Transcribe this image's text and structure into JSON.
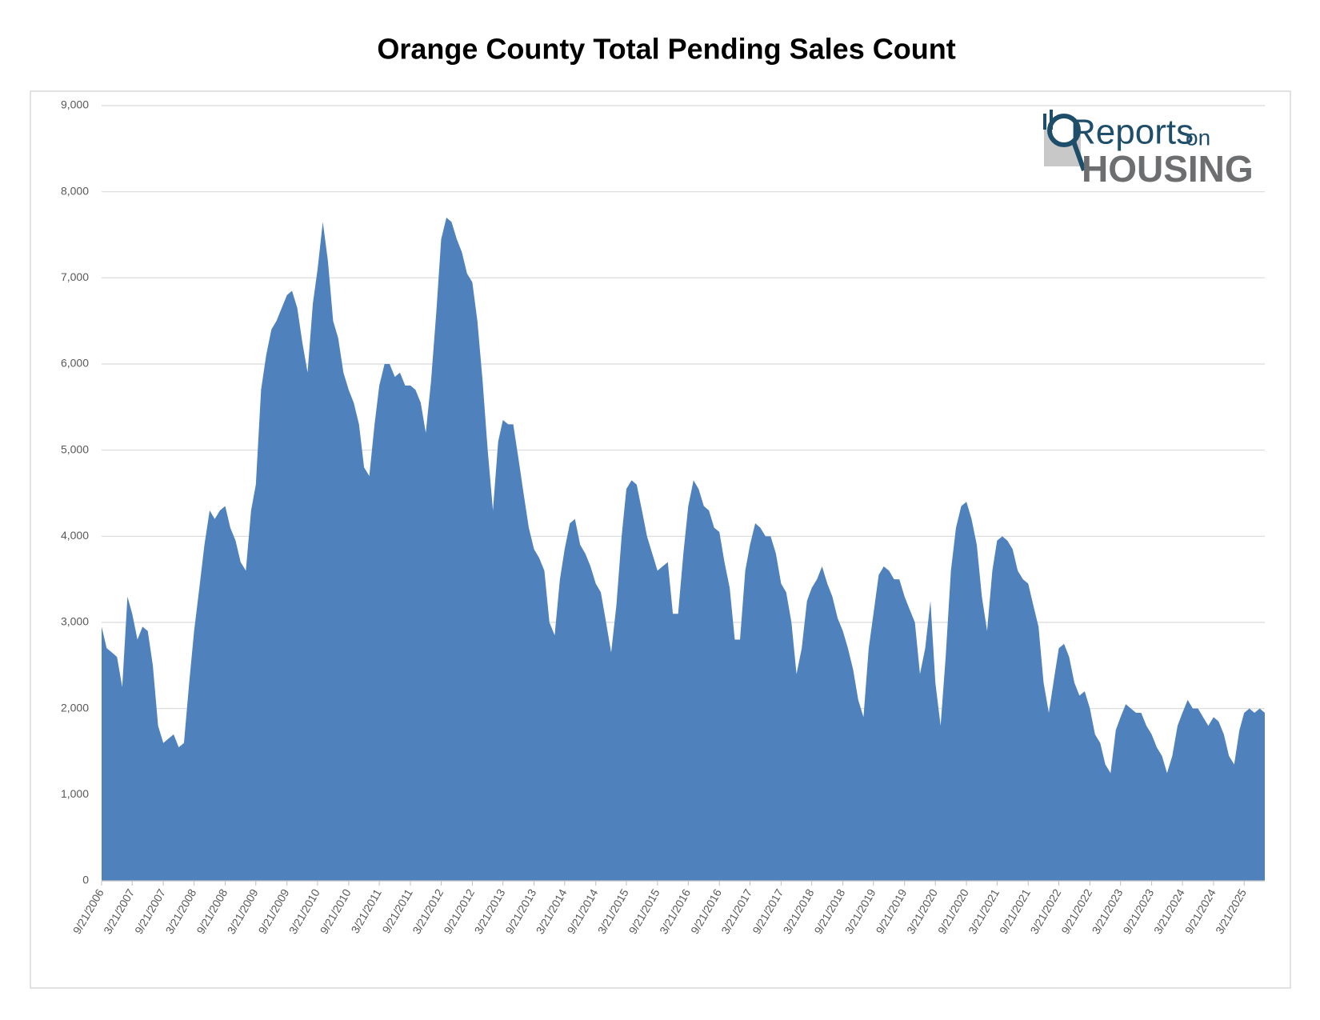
{
  "chart_data": {
    "type": "area",
    "title": "Orange County Total Pending Sales Count",
    "logo": {
      "word1": "Reports",
      "word2": "on",
      "word3": "HOUSING"
    },
    "color": "#4f81bd",
    "grid": true,
    "ylim": [
      0,
      9000
    ],
    "yticks": [
      0,
      {
        "value": 1000,
        "label": "1,000"
      },
      {
        "value": 2000,
        "label": "2,000"
      },
      {
        "value": 3000,
        "label": "3,000"
      },
      {
        "value": 4000,
        "label": "4,000"
      },
      {
        "value": 5000,
        "label": "5,000"
      },
      {
        "value": 6000,
        "label": "6,000"
      },
      {
        "value": 7000,
        "label": "7,000"
      },
      {
        "value": 8000,
        "label": "8,000"
      },
      {
        "value": 9000,
        "label": "9,000"
      }
    ],
    "xticks": [
      "9/21/2006",
      "3/21/2007",
      "9/21/2007",
      "3/21/2008",
      "9/21/2008",
      "3/21/2009",
      "9/21/2009",
      "3/21/2010",
      "9/21/2010",
      "3/21/2011",
      "9/21/2011",
      "3/21/2012",
      "9/21/2012",
      "3/21/2013",
      "9/21/2013",
      "3/21/2014",
      "9/21/2014",
      "3/21/2015",
      "9/21/2015",
      "3/21/2016",
      "9/21/2016",
      "3/21/2017",
      "9/21/2017",
      "3/21/2018",
      "9/21/2018",
      "3/21/2019",
      "9/21/2019",
      "3/21/2020",
      "9/21/2020",
      "3/21/2021",
      "9/21/2021",
      "3/21/2022",
      "9/21/2022",
      "3/21/2023",
      "9/21/2023",
      "3/21/2024",
      "9/21/2024",
      "3/21/2025"
    ],
    "x": [
      "9/21/2006",
      "10/21/2006",
      "11/21/2006",
      "12/21/2006",
      "1/21/2007",
      "2/21/2007",
      "3/21/2007",
      "4/21/2007",
      "5/21/2007",
      "6/21/2007",
      "7/21/2007",
      "8/21/2007",
      "9/21/2007",
      "10/21/2007",
      "11/21/2007",
      "12/21/2007",
      "1/21/2008",
      "2/21/2008",
      "3/21/2008",
      "4/21/2008",
      "5/21/2008",
      "6/21/2008",
      "7/21/2008",
      "8/21/2008",
      "9/21/2008",
      "10/21/2008",
      "11/21/2008",
      "12/21/2008",
      "1/21/2009",
      "2/21/2009",
      "3/21/2009",
      "4/21/2009",
      "5/21/2009",
      "6/21/2009",
      "7/21/2009",
      "8/21/2009",
      "9/21/2009",
      "10/21/2009",
      "11/21/2009",
      "12/21/2009",
      "1/21/2010",
      "2/21/2010",
      "3/21/2010",
      "4/21/2010",
      "5/21/2010",
      "6/21/2010",
      "7/21/2010",
      "8/21/2010",
      "9/21/2010",
      "10/21/2010",
      "11/21/2010",
      "12/21/2010",
      "1/21/2011",
      "2/21/2011",
      "3/21/2011",
      "4/21/2011",
      "5/21/2011",
      "6/21/2011",
      "7/21/2011",
      "8/21/2011",
      "9/21/2011",
      "10/21/2011",
      "11/21/2011",
      "12/21/2011",
      "1/21/2012",
      "2/21/2012",
      "3/21/2012",
      "4/21/2012",
      "5/21/2012",
      "6/21/2012",
      "7/21/2012",
      "8/21/2012",
      "9/21/2012",
      "10/21/2012",
      "11/21/2012",
      "12/21/2012",
      "1/21/2013",
      "2/21/2013",
      "3/21/2013",
      "4/21/2013",
      "5/21/2013",
      "6/21/2013",
      "7/21/2013",
      "8/21/2013",
      "9/21/2013",
      "10/21/2013",
      "11/21/2013",
      "12/21/2013",
      "1/21/2014",
      "2/21/2014",
      "3/21/2014",
      "4/21/2014",
      "5/21/2014",
      "6/21/2014",
      "7/21/2014",
      "8/21/2014",
      "9/21/2014",
      "10/21/2014",
      "11/21/2014",
      "12/21/2014",
      "1/21/2015",
      "2/21/2015",
      "3/21/2015",
      "4/21/2015",
      "5/21/2015",
      "6/21/2015",
      "7/21/2015",
      "8/21/2015",
      "9/21/2015",
      "10/21/2015",
      "11/21/2015",
      "12/21/2015",
      "1/21/2016",
      "2/21/2016",
      "3/21/2016",
      "4/21/2016",
      "5/21/2016",
      "6/21/2016",
      "7/21/2016",
      "8/21/2016",
      "9/21/2016",
      "10/21/2016",
      "11/21/2016",
      "12/21/2016",
      "1/21/2017",
      "2/21/2017",
      "3/21/2017",
      "4/21/2017",
      "5/21/2017",
      "6/21/2017",
      "7/21/2017",
      "8/21/2017",
      "9/21/2017",
      "10/21/2017",
      "11/21/2017",
      "12/21/2017",
      "1/21/2018",
      "2/21/2018",
      "3/21/2018",
      "4/21/2018",
      "5/21/2018",
      "6/21/2018",
      "7/21/2018",
      "8/21/2018",
      "9/21/2018",
      "10/21/2018",
      "11/21/2018",
      "12/21/2018",
      "1/21/2019",
      "2/21/2019",
      "3/21/2019",
      "4/21/2019",
      "5/21/2019",
      "6/21/2019",
      "7/21/2019",
      "8/21/2019",
      "9/21/2019",
      "10/21/2019",
      "11/21/2019",
      "12/21/2019",
      "1/21/2020",
      "2/21/2020",
      "3/21/2020",
      "4/21/2020",
      "5/21/2020",
      "6/21/2020",
      "7/21/2020",
      "8/21/2020",
      "9/21/2020",
      "10/21/2020",
      "11/21/2020",
      "12/21/2020",
      "1/21/2021",
      "2/21/2021",
      "3/21/2021",
      "4/21/2021",
      "5/21/2021",
      "6/21/2021",
      "7/21/2021",
      "8/21/2021",
      "9/21/2021",
      "10/21/2021",
      "11/21/2021",
      "12/21/2021",
      "1/21/2022",
      "2/21/2022",
      "3/21/2022",
      "4/21/2022",
      "5/21/2022",
      "6/21/2022",
      "7/21/2022",
      "8/21/2022",
      "9/21/2022",
      "10/21/2022",
      "11/21/2022",
      "12/21/2022",
      "1/21/2023",
      "2/21/2023",
      "3/21/2023",
      "4/21/2023",
      "5/21/2023",
      "6/21/2023",
      "7/21/2023",
      "8/21/2023",
      "9/21/2023",
      "10/21/2023",
      "11/21/2023",
      "12/21/2023",
      "1/21/2024",
      "2/21/2024",
      "3/21/2024",
      "4/21/2024",
      "5/21/2024",
      "6/21/2024",
      "7/21/2024",
      "8/21/2024",
      "9/21/2024",
      "10/21/2024",
      "11/21/2024",
      "12/21/2024",
      "1/21/2025",
      "2/21/2025",
      "3/21/2025",
      "4/21/2025",
      "5/21/2025",
      "6/21/2025",
      "7/21/2025"
    ],
    "values": [
      2950,
      2700,
      2650,
      2600,
      2250,
      3300,
      3100,
      2800,
      2950,
      2900,
      2500,
      1800,
      1600,
      1650,
      1700,
      1550,
      1600,
      2300,
      2900,
      3400,
      3900,
      4300,
      4200,
      4300,
      4350,
      4100,
      3950,
      3700,
      3600,
      4300,
      4600,
      5700,
      6100,
      6400,
      6500,
      6650,
      6800,
      6850,
      6650,
      6250,
      5900,
      6700,
      7100,
      7650,
      7200,
      6500,
      6300,
      5900,
      5700,
      5550,
      5300,
      4800,
      4700,
      5300,
      5750,
      6000,
      6000,
      5850,
      5900,
      5750,
      5750,
      5700,
      5550,
      5200,
      5800,
      6600,
      7450,
      7700,
      7650,
      7450,
      7300,
      7050,
      6950,
      6500,
      5800,
      5000,
      4300,
      5100,
      5350,
      5300,
      5300,
      4900,
      4500,
      4100,
      3850,
      3750,
      3600,
      3000,
      2850,
      3500,
      3850,
      4150,
      4200,
      3900,
      3800,
      3650,
      3450,
      3350,
      3000,
      2650,
      3200,
      4000,
      4550,
      4650,
      4600,
      4300,
      4000,
      3800,
      3600,
      3650,
      3700,
      3100,
      3100,
      3800,
      4350,
      4650,
      4550,
      4350,
      4300,
      4100,
      4050,
      3700,
      3400,
      2800,
      2800,
      3600,
      3900,
      4150,
      4100,
      4000,
      4000,
      3800,
      3450,
      3350,
      3000,
      2400,
      2700,
      3250,
      3400,
      3500,
      3650,
      3450,
      3300,
      3050,
      2900,
      2700,
      2450,
      2100,
      1900,
      2700,
      3100,
      3550,
      3650,
      3600,
      3500,
      3500,
      3300,
      3150,
      3000,
      2400,
      2700,
      3250,
      2300,
      1800,
      2600,
      3600,
      4100,
      4350,
      4400,
      4200,
      3900,
      3300,
      2900,
      3600,
      3950,
      4000,
      3950,
      3850,
      3600,
      3500,
      3450,
      3200,
      2950,
      2300,
      1950,
      2350,
      2700,
      2750,
      2600,
      2300,
      2150,
      2200,
      2000,
      1700,
      1600,
      1350,
      1250,
      1750,
      1900,
      2050,
      2000,
      1950,
      1950,
      1800,
      1700,
      1550,
      1450,
      1250,
      1450,
      1800,
      1950,
      2100,
      2000,
      2000,
      1900,
      1800,
      1900,
      1850,
      1700,
      1450,
      1350,
      1750,
      1950,
      2000,
      1950,
      2000,
      1950
    ]
  }
}
